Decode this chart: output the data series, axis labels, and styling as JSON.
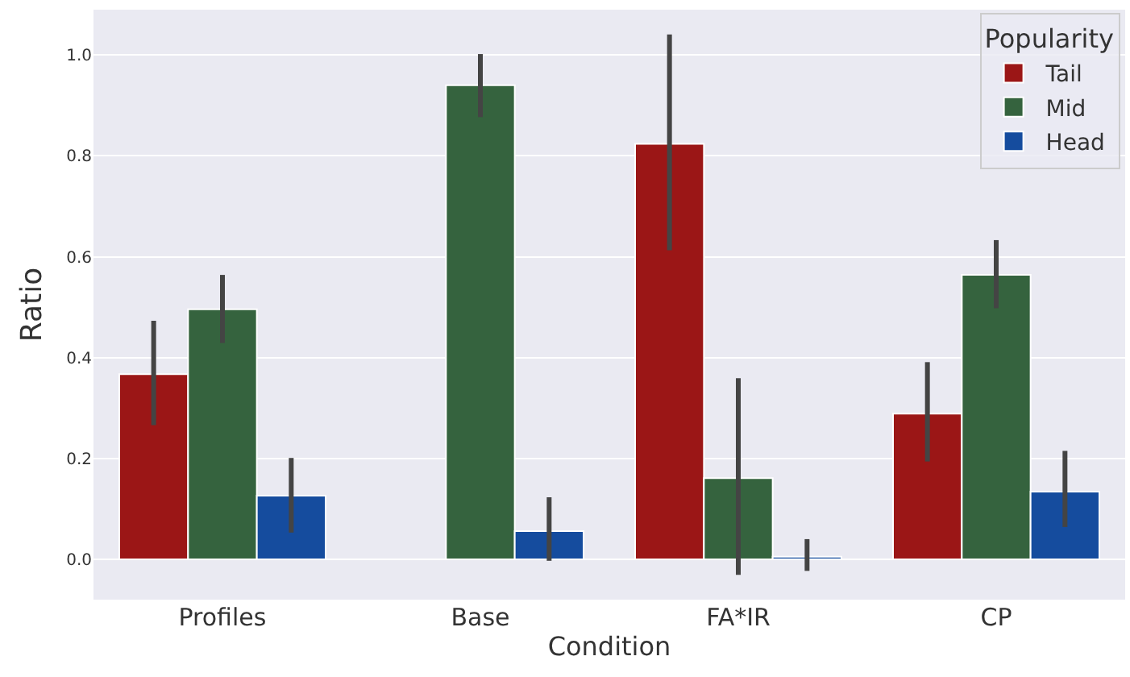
{
  "chart_data": {
    "type": "bar",
    "xlabel": "Condition",
    "ylabel": "Ratio",
    "legend_title": "Popularity",
    "categories": [
      "Profiles",
      "Base",
      "FA*IR",
      "CP"
    ],
    "series": [
      {
        "name": "Tail",
        "color": "#9b1616",
        "values": [
          0.367,
          null,
          0.824,
          0.289
        ],
        "errors": [
          [
            0.266,
            0.473
          ],
          null,
          [
            0.613,
            1.041
          ],
          [
            0.194,
            0.391
          ]
        ]
      },
      {
        "name": "Mid",
        "color": "#35633e",
        "values": [
          0.496,
          0.94,
          0.161,
          0.564
        ],
        "errors": [
          [
            0.429,
            0.564
          ],
          [
            0.877,
            1.002
          ],
          [
            -0.031,
            0.359
          ],
          [
            0.498,
            0.633
          ]
        ]
      },
      {
        "name": "Head",
        "color": "#154c9e",
        "values": [
          0.126,
          0.056,
          0.005,
          0.134
        ],
        "errors": [
          [
            0.053,
            0.201
          ],
          [
            -0.003,
            0.123
          ],
          [
            -0.023,
            0.04
          ],
          [
            0.064,
            0.215
          ]
        ]
      }
    ],
    "ylim": [
      -0.08,
      1.09
    ],
    "yticks": [
      {
        "value": 0,
        "label": "0.0"
      },
      0.2,
      0.4,
      0.6,
      0.8,
      {
        "value": 1,
        "label": "1.0"
      }
    ],
    "grid": "y",
    "legend": "top right"
  }
}
